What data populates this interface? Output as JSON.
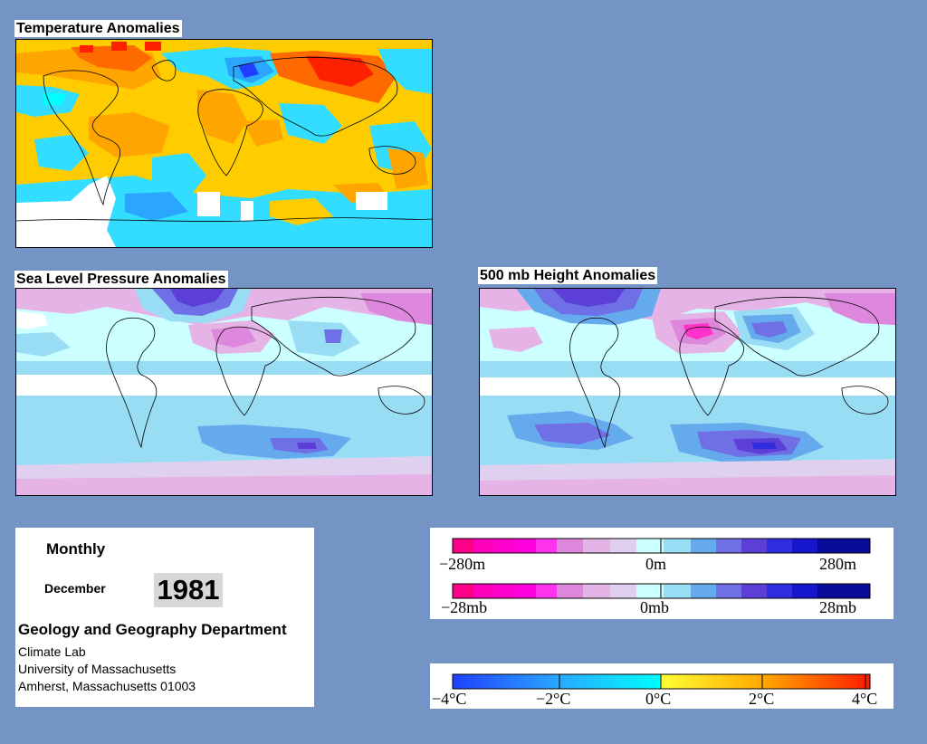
{
  "panels": {
    "temperature": {
      "title": "Temperature Anomalies"
    },
    "slp": {
      "title": "Sea Level Pressure Anomalies"
    },
    "height500": {
      "title": "500 mb Height Anomalies"
    }
  },
  "info": {
    "period_label": "Monthly",
    "month": "December",
    "year": "1981",
    "department": "Geology and Geography Department",
    "address_lines": [
      "Climate Lab",
      "University of Massachusetts",
      "Amherst, Massachusetts 01003"
    ]
  },
  "legends": {
    "height": {
      "labels": [
        "−280m",
        "0m",
        "280m"
      ]
    },
    "pressure": {
      "labels": [
        "−28mb",
        "0mb",
        "28mb"
      ]
    },
    "temperature": {
      "labels": [
        "−4°C",
        "−2°C",
        "0°C",
        "2°C",
        "4°C"
      ]
    }
  },
  "colors": {
    "background": "#7394c4",
    "anomaly_scale_pos": [
      "#ccffff",
      "#99ddf5",
      "#66aaee",
      "#6f6fe6",
      "#5b3fd6",
      "#2e2ee0",
      "#1515cc",
      "#0a0a99"
    ],
    "anomaly_scale_neg": [
      "#ffffff",
      "#e0d0f0",
      "#e6b3e6",
      "#dd88dd",
      "#ff33cc",
      "#ff00bb",
      "#ff0088",
      "#ff3399"
    ],
    "temp_scale": [
      "#1f3fff",
      "#2aa6ff",
      "#33ddff",
      "#00ffff",
      "#ffff33",
      "#ffd000",
      "#ffa500",
      "#ff6a00",
      "#ff2000"
    ]
  }
}
